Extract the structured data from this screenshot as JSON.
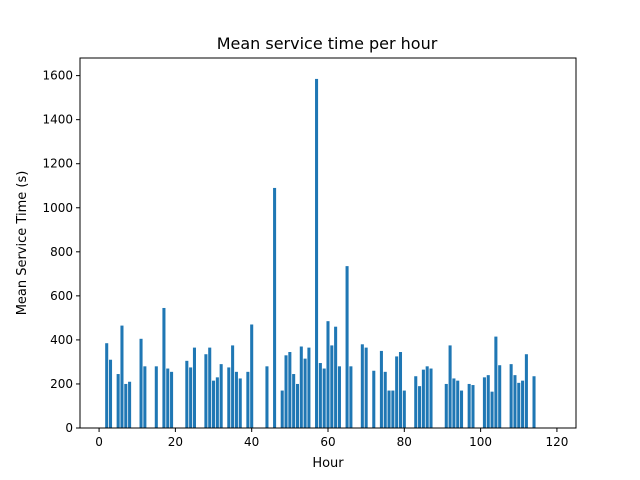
{
  "chart_data": {
    "type": "bar",
    "title": "Mean service time per hour",
    "xlabel": "Hour",
    "ylabel": "Mean Service Time (s)",
    "xlim": [
      -5,
      125
    ],
    "ylim": [
      0,
      1680
    ],
    "xticks": [
      0,
      20,
      40,
      60,
      80,
      100,
      120
    ],
    "yticks": [
      0,
      200,
      400,
      600,
      800,
      1000,
      1200,
      1400,
      1600
    ],
    "bar_width": 0.8,
    "color": "#1f77b4",
    "grid": false,
    "legend": "none",
    "x": [
      2,
      3,
      5,
      6,
      7,
      8,
      11,
      12,
      15,
      17,
      18,
      19,
      23,
      24,
      25,
      28,
      29,
      30,
      31,
      32,
      34,
      35,
      36,
      37,
      39,
      40,
      44,
      46,
      48,
      49,
      50,
      51,
      52,
      53,
      54,
      55,
      57,
      58,
      59,
      60,
      61,
      62,
      63,
      65,
      66,
      69,
      70,
      72,
      74,
      75,
      76,
      77,
      78,
      79,
      80,
      83,
      84,
      85,
      86,
      87,
      91,
      92,
      93,
      94,
      95,
      97,
      98,
      101,
      102,
      103,
      104,
      105,
      108,
      109,
      110,
      111,
      112,
      114
    ],
    "values": [
      385,
      310,
      245,
      465,
      200,
      210,
      405,
      280,
      280,
      545,
      270,
      255,
      305,
      275,
      365,
      335,
      365,
      215,
      230,
      290,
      275,
      375,
      255,
      225,
      255,
      470,
      280,
      1090,
      170,
      330,
      345,
      245,
      200,
      370,
      315,
      365,
      1585,
      295,
      270,
      485,
      375,
      460,
      280,
      735,
      280,
      380,
      365,
      260,
      350,
      255,
      170,
      170,
      325,
      345,
      170,
      235,
      190,
      265,
      280,
      270,
      200,
      375,
      225,
      215,
      170,
      200,
      195,
      230,
      240,
      165,
      415,
      285,
      290,
      240,
      205,
      215,
      335,
      235
    ]
  }
}
